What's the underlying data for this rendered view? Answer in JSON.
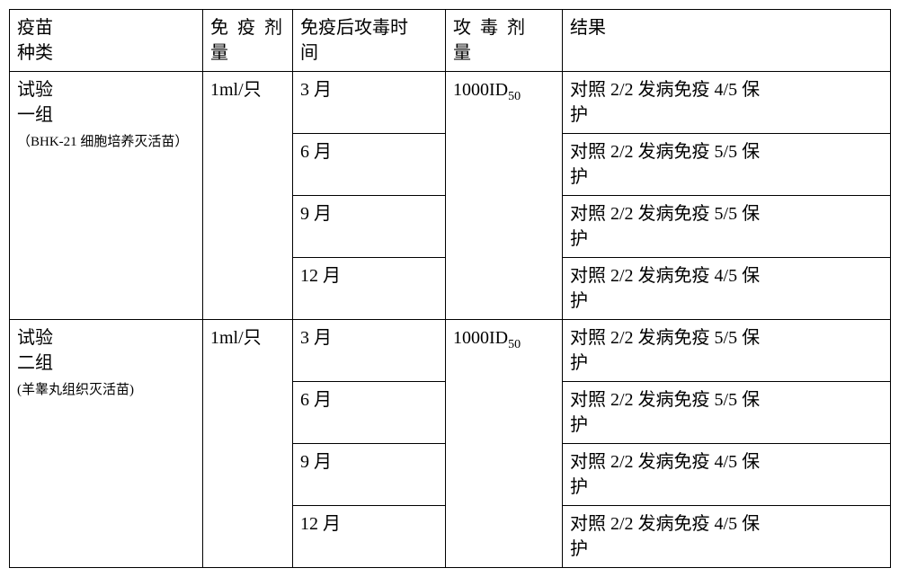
{
  "header": {
    "c1": "疫苗",
    "c1b": "种类",
    "c2a": "免",
    "c2b": "疫",
    "c2c": "剂",
    "c2end": "量",
    "c3": "免疫后攻毒时",
    "c3b": "间",
    "c4a": "攻",
    "c4b": "毒",
    "c4c": "剂",
    "c4end": "量",
    "c5": "结果"
  },
  "group1": {
    "title1": "试验",
    "title2": "一组",
    "sub": "（BHK-21 细胞培养灭活苗）",
    "dose": "1ml/只",
    "challenge": "1000ID",
    "challenge_sub": "50",
    "rows": [
      {
        "time": "3 月",
        "res1": "对照 2/2 发病免疫 4/5 保",
        "res2": "护"
      },
      {
        "time": "6 月",
        "res1": "对照 2/2 发病免疫 5/5 保",
        "res2": "护"
      },
      {
        "time": "9 月",
        "res1": "对照 2/2 发病免疫 5/5 保",
        "res2": "护"
      },
      {
        "time": "12 月",
        "res1": "对照 2/2 发病免疫 4/5 保",
        "res2": "护"
      }
    ]
  },
  "group2": {
    "title1": "试验",
    "title2": "二组",
    "sub": "(羊睾丸组织灭活苗)",
    "dose": "1ml/只",
    "challenge": "1000ID",
    "challenge_sub": "50",
    "rows": [
      {
        "time": "3 月",
        "res1": "对照 2/2 发病免疫 5/5 保",
        "res2": "护"
      },
      {
        "time": "6 月",
        "res1": "对照 2/2 发病免疫 5/5 保",
        "res2": "护"
      },
      {
        "time": "9 月",
        "res1": "对照 2/2 发病免疫 4/5 保",
        "res2": "护"
      },
      {
        "time": "12 月",
        "res1": "对照 2/2 发病免疫 4/5 保",
        "res2": "护"
      }
    ]
  }
}
